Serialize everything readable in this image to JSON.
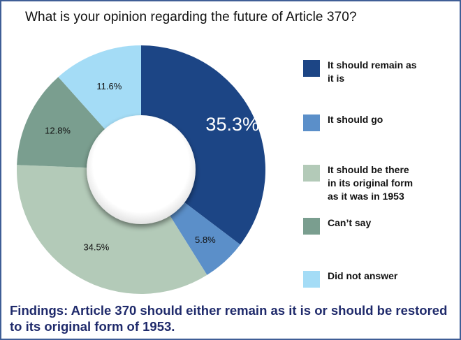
{
  "title": "What is your opinion regarding the future of Article 370?",
  "findings": "Findings: Article 370 should either remain as it is or should be restored to its original form of 1953.",
  "chart_data": {
    "type": "pie",
    "donut": true,
    "title": "What is your opinion regarding the future of Article 370?",
    "legend_position": "right",
    "slices": [
      {
        "label": "It should remain as it is",
        "value": 35.3,
        "display": "35.3%",
        "color": "#1c4585"
      },
      {
        "label": "It should go",
        "value": 5.8,
        "display": "5.8%",
        "color": "#5b8fc9"
      },
      {
        "label": "It should be there in its original form as it was in 1953",
        "value": 34.5,
        "display": "34.5%",
        "color": "#b3cab8"
      },
      {
        "label": "Can’t say",
        "value": 12.8,
        "display": "12.8%",
        "color": "#7a9e8f"
      },
      {
        "label": "Did not answer",
        "value": 11.6,
        "display": "11.6%",
        "color": "#a4dcf6"
      }
    ]
  }
}
